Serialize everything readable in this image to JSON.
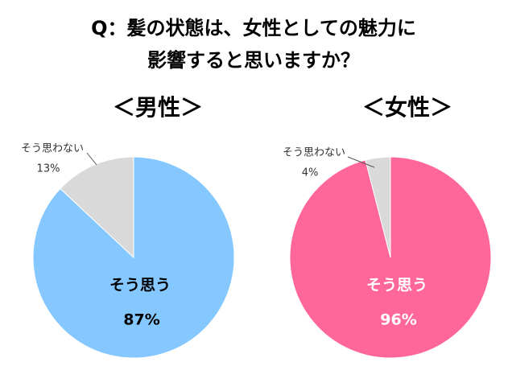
{
  "title": [
    "Q：髪の状態は、女性としての魅力に",
    "影響すると思いますか？"
  ],
  "chart_data": [
    {
      "type": "pie",
      "title": "＜男性＞",
      "categories": [
        "そう思う",
        "そう思わない"
      ],
      "values": [
        87,
        13
      ],
      "value_labels": [
        "87%",
        "13%"
      ],
      "colors": [
        "#85c8ff",
        "#d9d9d9"
      ],
      "inner_label_color": "#000000"
    },
    {
      "type": "pie",
      "title": "＜女性＞",
      "categories": [
        "そう思う",
        "そう思わない"
      ],
      "values": [
        96,
        4
      ],
      "value_labels": [
        "96%",
        "4%"
      ],
      "colors": [
        "#ff6699",
        "#d9d9d9"
      ],
      "inner_label_color": "#ffffff"
    }
  ]
}
